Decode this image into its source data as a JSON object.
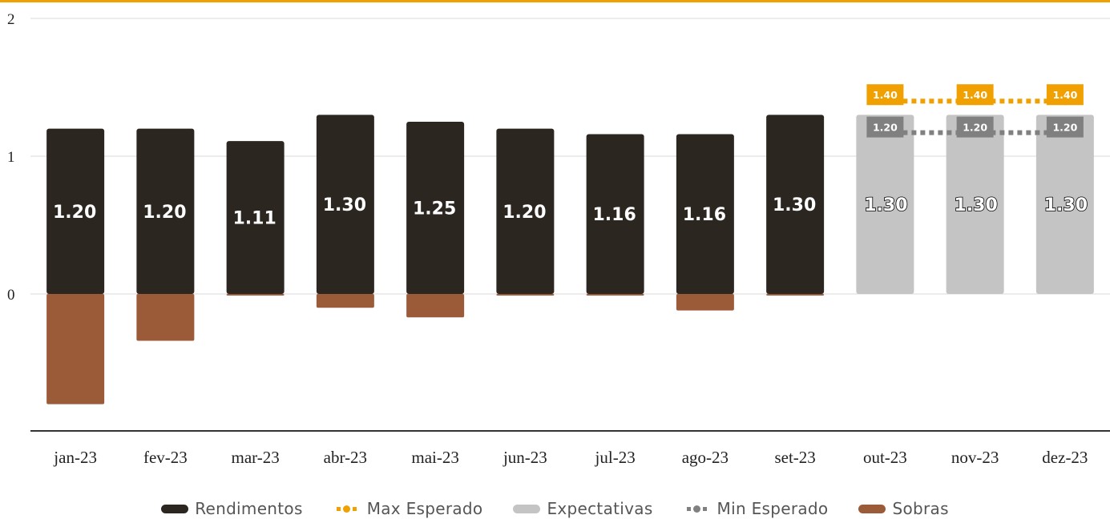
{
  "chart_data": {
    "type": "bar",
    "categories": [
      "jan-23",
      "fev-23",
      "mar-23",
      "abr-23",
      "mai-23",
      "jun-23",
      "jul-23",
      "ago-23",
      "set-23",
      "out-23",
      "nov-23",
      "dez-23"
    ],
    "ylim": [
      -1,
      2
    ],
    "yticks": [
      0,
      1,
      2
    ],
    "series": [
      {
        "name": "Rendimentos",
        "color": "#2c2621",
        "values": [
          1.2,
          1.2,
          1.11,
          1.3,
          1.25,
          1.2,
          1.16,
          1.16,
          1.3,
          null,
          null,
          null
        ],
        "labels": [
          "1.20",
          "1.20",
          "1.11",
          "1.30",
          "1.25",
          "1.20",
          "1.16",
          "1.16",
          "1.30",
          "",
          "",
          ""
        ]
      },
      {
        "name": "Expectativas",
        "color": "#c4c4c4",
        "values": [
          null,
          null,
          null,
          null,
          null,
          null,
          null,
          null,
          null,
          1.3,
          1.3,
          1.3
        ],
        "labels": [
          "",
          "",
          "",
          "",
          "",
          "",
          "",
          "",
          "",
          "1.30",
          "1.30",
          "1.30"
        ]
      },
      {
        "name": "Sobras",
        "color": "#9b5b38",
        "values": [
          -0.8,
          -0.34,
          -0.01,
          -0.1,
          -0.17,
          -0.01,
          -0.01,
          -0.12,
          -0.01,
          null,
          null,
          null
        ]
      },
      {
        "name": "Max Esperado",
        "color": "#f0a000",
        "values": [
          null,
          null,
          null,
          null,
          null,
          null,
          null,
          null,
          null,
          1.4,
          1.4,
          1.4
        ],
        "labels": [
          "",
          "",
          "",
          "",
          "",
          "",
          "",
          "",
          "",
          "1.40",
          "1.40",
          "1.40"
        ]
      },
      {
        "name": "Min Esperado",
        "color": "#808080",
        "values": [
          null,
          null,
          null,
          null,
          null,
          null,
          null,
          null,
          null,
          1.2,
          1.2,
          1.2
        ],
        "labels": [
          "",
          "",
          "",
          "",
          "",
          "",
          "",
          "",
          "",
          "1.20",
          "1.20",
          "1.20"
        ]
      }
    ],
    "legend": [
      "Rendimentos",
      "Max Esperado",
      "Expectativas",
      "Min Esperado",
      "Sobras"
    ],
    "legend_position": "bottom",
    "grid": true
  }
}
